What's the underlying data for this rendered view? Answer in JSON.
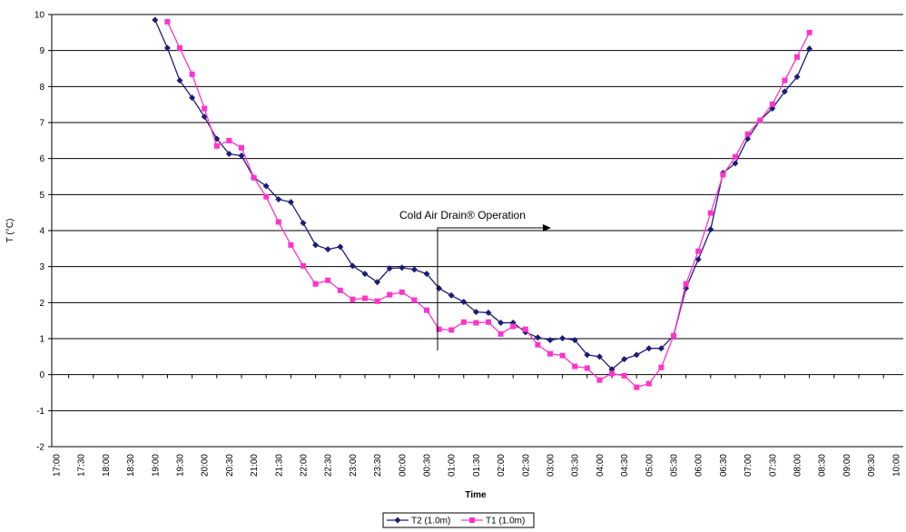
{
  "chart_data": {
    "type": "line",
    "annotation": "Cold Air Drain® Operation",
    "x_label": "Time",
    "y_label": "T (°C)",
    "ylim": [
      -2,
      10
    ],
    "yticks": [
      -2,
      -1,
      0,
      1,
      2,
      3,
      4,
      5,
      6,
      7,
      8,
      9,
      10
    ],
    "grid": true,
    "legend": "bottom",
    "categories": [
      "17:00",
      null,
      "17:30",
      null,
      "18:00",
      null,
      "18:30",
      null,
      "19:00",
      null,
      "19:30",
      null,
      "20:00",
      null,
      "20:30",
      null,
      "21:00",
      null,
      "21:30",
      null,
      "22:00",
      null,
      "22:30",
      null,
      "23:00",
      null,
      "23:30",
      null,
      "00:00",
      null,
      "00:30",
      null,
      "01:00",
      null,
      "01:30",
      null,
      "02:00",
      null,
      "02:30",
      null,
      "03:00",
      null,
      "03:30",
      null,
      "04:00",
      null,
      "04:30",
      null,
      "05:00",
      null,
      "05:30",
      null,
      "06:00",
      null,
      "06:30",
      null,
      "07:00",
      null,
      "07:30",
      null,
      "08:00",
      null,
      "08:30",
      null,
      "09:00",
      null,
      "09:30",
      null,
      "10:00"
    ],
    "series": [
      {
        "name": "T2 (1.0m)",
        "color": "#1c1c78",
        "marker": "diamond",
        "values": [
          null,
          null,
          null,
          null,
          null,
          null,
          null,
          null,
          9.85,
          9.07,
          8.17,
          7.69,
          7.16,
          6.55,
          6.13,
          6.08,
          5.47,
          5.24,
          4.87,
          4.79,
          4.21,
          3.6,
          3.48,
          3.55,
          3.02,
          2.8,
          2.57,
          2.95,
          2.97,
          2.92,
          2.8,
          2.4,
          2.2,
          2.02,
          1.74,
          1.72,
          1.44,
          1.44,
          1.18,
          1.03,
          0.96,
          1.01,
          0.96,
          0.55,
          0.5,
          0.15,
          0.43,
          0.55,
          0.73,
          0.73,
          1.08,
          2.4,
          3.2,
          4.03,
          5.6,
          5.87,
          6.55,
          7.06,
          7.39,
          7.86,
          8.27,
          9.05,
          null,
          null,
          null,
          null,
          null,
          null,
          null
        ]
      },
      {
        "name": "T1 (1.0m)",
        "color": "#ff33cc",
        "marker": "square",
        "values": [
          null,
          null,
          null,
          null,
          null,
          null,
          null,
          null,
          null,
          9.8,
          9.07,
          8.34,
          7.39,
          6.35,
          6.5,
          6.3,
          5.47,
          4.94,
          4.24,
          3.6,
          3.02,
          2.52,
          2.62,
          2.34,
          2.09,
          2.12,
          2.04,
          2.22,
          2.29,
          2.07,
          1.79,
          1.26,
          1.24,
          1.46,
          1.44,
          1.46,
          1.13,
          1.34,
          1.26,
          0.83,
          0.58,
          0.53,
          0.23,
          0.18,
          -0.15,
          0.03,
          -0.03,
          -0.35,
          -0.25,
          0.2,
          1.08,
          2.52,
          3.43,
          4.49,
          5.55,
          6.05,
          6.68,
          7.06,
          7.51,
          8.17,
          8.82,
          9.5,
          null,
          null,
          null,
          null,
          null,
          null,
          null
        ]
      }
    ]
  }
}
